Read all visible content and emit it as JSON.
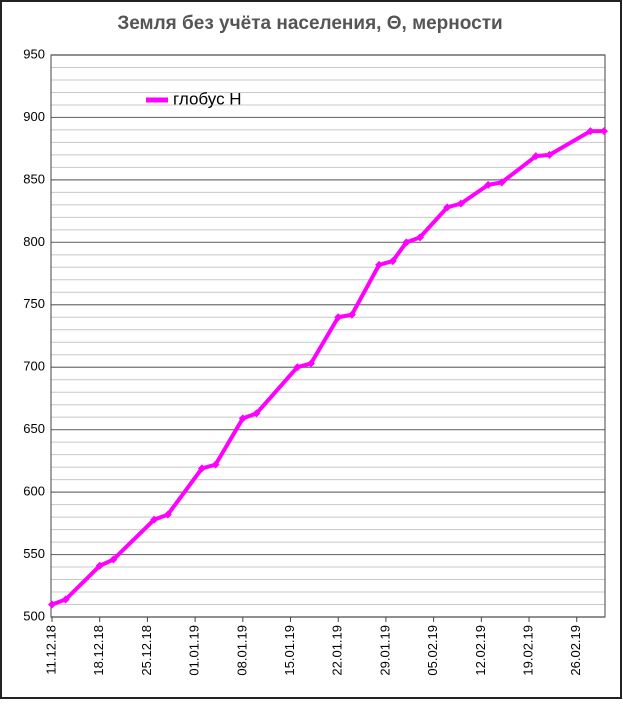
{
  "chart_data": {
    "type": "line",
    "title": "Земля без учёта населения, Θ, мерности",
    "x": [
      "11.12.18",
      "13.12.18",
      "18.12.18",
      "20.12.18",
      "26.12.18",
      "28.12.18",
      "02.01.19",
      "04.01.19",
      "08.01.19",
      "10.01.19",
      "16.01.19",
      "18.01.19",
      "22.01.19",
      "24.01.19",
      "28.01.19",
      "30.01.19",
      "01.02.19",
      "03.02.19",
      "07.02.19",
      "09.02.19",
      "13.02.19",
      "15.02.19",
      "20.02.19",
      "22.02.19",
      "28.02.19",
      "02.03.19"
    ],
    "series": [
      {
        "name": "глобус Н",
        "color": "#ff00ff",
        "values": [
          510,
          514,
          541,
          546,
          578,
          582,
          619,
          622,
          659,
          663,
          700,
          703,
          740,
          742,
          782,
          785,
          800,
          804,
          828,
          831,
          846,
          848,
          869,
          870,
          889,
          889
        ]
      }
    ],
    "xlim": [
      "11.12.18",
      "02.03.19"
    ],
    "xticks": [
      "11.12.18",
      "18.12.18",
      "25.12.18",
      "01.01.19",
      "08.01.19",
      "15.01.19",
      "22.01.19",
      "29.01.19",
      "05.02.19",
      "12.02.19",
      "19.02.19",
      "26.02.19"
    ],
    "ylim": [
      500,
      950
    ],
    "yticks": [
      500,
      550,
      600,
      650,
      700,
      750,
      800,
      850,
      900,
      950
    ],
    "grid": true,
    "minor_grid_divisions": 5,
    "legend": "upper left"
  }
}
